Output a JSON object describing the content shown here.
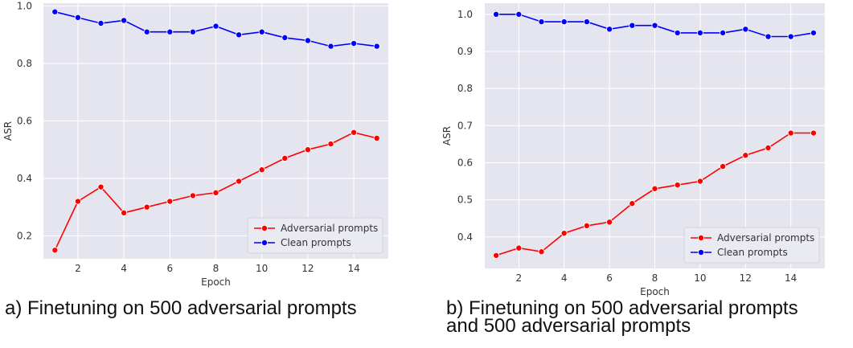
{
  "chart_data": [
    {
      "type": "line",
      "title": "",
      "xlabel": "Epoch",
      "ylabel": "ASR",
      "x": [
        1,
        2,
        3,
        4,
        5,
        6,
        7,
        8,
        9,
        10,
        11,
        12,
        13,
        14,
        15
      ],
      "xlim": [
        0.5,
        15.5
      ],
      "ylim": [
        0.12,
        1.01
      ],
      "xticks": [
        2,
        4,
        6,
        8,
        10,
        12,
        14
      ],
      "yticks": [
        0.2,
        0.4,
        0.6,
        0.8,
        1.0
      ],
      "ytick_decimals": 1,
      "grid": true,
      "legend_position": "bottom-right",
      "series": [
        {
          "name": "Adversarial prompts",
          "color": "#ff0000",
          "values": [
            0.15,
            0.32,
            0.37,
            0.28,
            0.3,
            0.32,
            0.34,
            0.35,
            0.39,
            0.43,
            0.47,
            0.5,
            0.52,
            0.56,
            0.54
          ]
        },
        {
          "name": "Clean prompts",
          "color": "#0000ff",
          "values": [
            0.98,
            0.96,
            0.94,
            0.95,
            0.91,
            0.91,
            0.91,
            0.93,
            0.9,
            0.91,
            0.89,
            0.88,
            0.86,
            0.87,
            0.86
          ]
        }
      ]
    },
    {
      "type": "line",
      "title": "",
      "xlabel": "Epoch",
      "ylabel": "ASR",
      "x": [
        1,
        2,
        3,
        4,
        5,
        6,
        7,
        8,
        9,
        10,
        11,
        12,
        13,
        14,
        15
      ],
      "xlim": [
        0.5,
        15.5
      ],
      "ylim": [
        0.315,
        1.03
      ],
      "xticks": [
        2,
        4,
        6,
        8,
        10,
        12,
        14
      ],
      "yticks": [
        0.4,
        0.5,
        0.6,
        0.7,
        0.8,
        0.9,
        1.0
      ],
      "ytick_decimals": 1,
      "grid": true,
      "legend_position": "bottom-right",
      "series": [
        {
          "name": "Adversarial prompts",
          "color": "#ff0000",
          "values": [
            0.35,
            0.37,
            0.36,
            0.41,
            0.43,
            0.44,
            0.49,
            0.53,
            0.54,
            0.55,
            0.59,
            0.62,
            0.64,
            0.68,
            0.68
          ]
        },
        {
          "name": "Clean prompts",
          "color": "#0000ff",
          "values": [
            1.0,
            1.0,
            0.98,
            0.98,
            0.98,
            0.96,
            0.97,
            0.97,
            0.95,
            0.95,
            0.95,
            0.96,
            0.94,
            0.94,
            0.95
          ]
        }
      ]
    }
  ],
  "captions": {
    "a": "a) Finetuning on 500 adversarial prompts",
    "b": "b) Finetuning on 500 adversarial prompts\n    and 500 adversarial prompts"
  }
}
